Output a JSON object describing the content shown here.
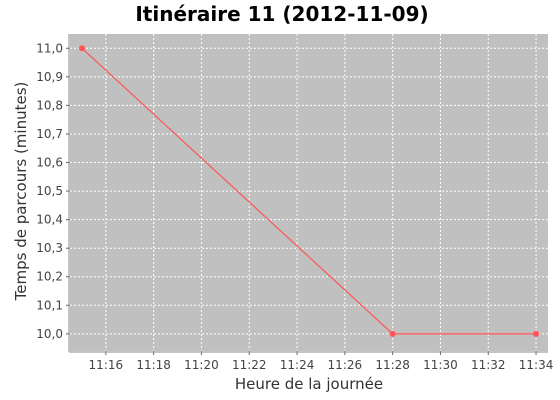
{
  "chart_data": {
    "type": "line",
    "title": "Itinéraire 11 (2012-11-09)",
    "xlabel": "Heure de la journée",
    "ylabel": "Temps de parcours (minutes)",
    "x_ticks": [
      "11:16",
      "11:18",
      "11:20",
      "11:22",
      "11:24",
      "11:26",
      "11:28",
      "11:30",
      "11:32",
      "11:34"
    ],
    "y_ticks": [
      "10,0",
      "10,1",
      "10,2",
      "10,3",
      "10,4",
      "10,5",
      "10,6",
      "10,7",
      "10,8",
      "10,9",
      "11,0"
    ],
    "xlim": [
      "11:14:30",
      "11:34:30"
    ],
    "ylim": [
      9.94,
      11.05
    ],
    "grid": true,
    "background_color": "#c0c0c0",
    "grid_color": "#ffffff",
    "series": [
      {
        "color": "#ff5555",
        "points": [
          {
            "x": "11:15",
            "y": 11.0
          },
          {
            "x": "11:28",
            "y": 10.0
          },
          {
            "x": "11:34",
            "y": 10.0
          }
        ]
      }
    ]
  }
}
